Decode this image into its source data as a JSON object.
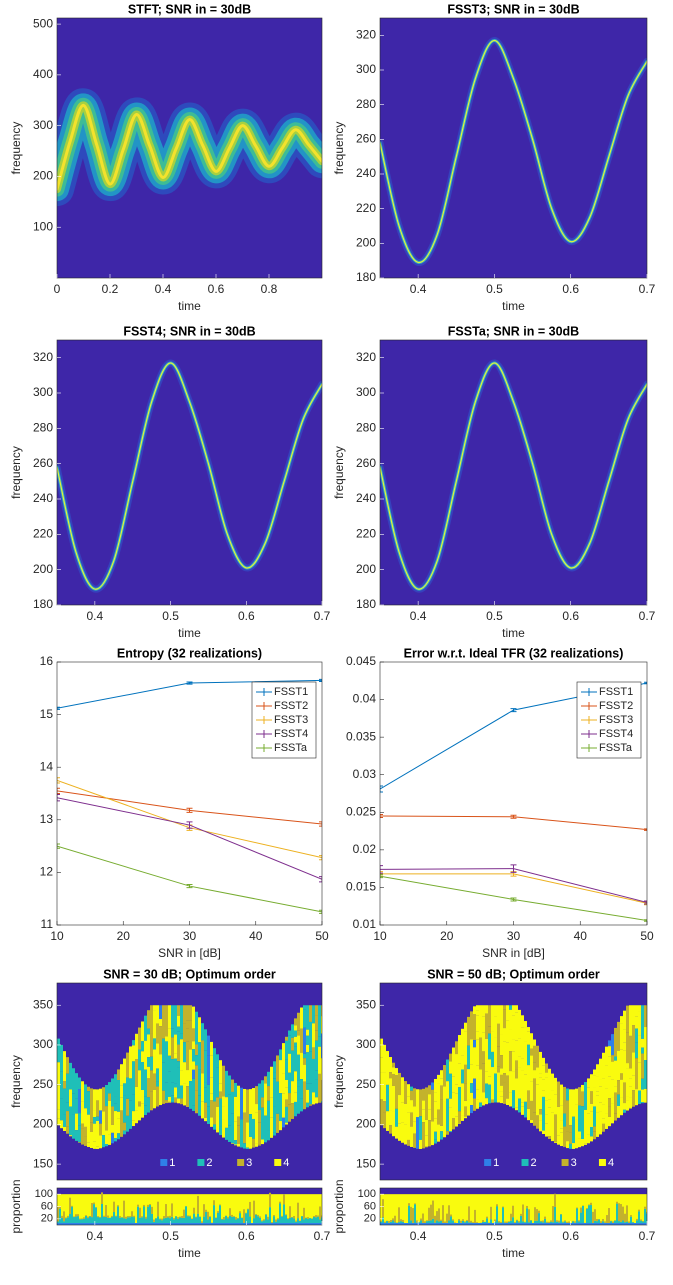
{
  "chart_data": [
    {
      "type": "heatmap",
      "title": "STFT; SNR in = 30dB",
      "xlabel": "time",
      "ylabel": "frequency",
      "xlim": [
        0,
        1
      ],
      "xticks": [
        0,
        0.2,
        0.4,
        0.6,
        0.8
      ],
      "ylim": [
        0,
        512
      ],
      "yticks": [
        100,
        200,
        300,
        400,
        500
      ],
      "style": "wide",
      "x": [
        0,
        0.05,
        0.1,
        0.15,
        0.2,
        0.25,
        0.3,
        0.35,
        0.4,
        0.45,
        0.5,
        0.55,
        0.6,
        0.65,
        0.7,
        0.75,
        0.8,
        0.85,
        0.9,
        0.95,
        1
      ],
      "values": [
        175,
        270,
        340,
        262,
        185,
        253,
        322,
        260,
        198,
        255,
        312,
        261,
        210,
        255,
        300,
        260,
        220,
        256,
        292,
        262,
        230
      ]
    },
    {
      "type": "heatmap",
      "title": "FSST3; SNR in = 30dB",
      "xlabel": "time",
      "ylabel": "frequency",
      "xlim": [
        0.35,
        0.7
      ],
      "xticks": [
        0.4,
        0.5,
        0.6,
        0.7
      ],
      "ylim": [
        180,
        330
      ],
      "yticks": [
        180,
        200,
        220,
        240,
        260,
        280,
        300,
        320
      ],
      "style": "thin",
      "x": [
        0.35,
        0.375,
        0.4,
        0.425,
        0.45,
        0.475,
        0.5,
        0.525,
        0.55,
        0.575,
        0.6,
        0.625,
        0.65,
        0.675,
        0.7
      ],
      "values": [
        258,
        210,
        189,
        205,
        250,
        295,
        317,
        295,
        260,
        220,
        201,
        215,
        250,
        285,
        305
      ]
    },
    {
      "type": "heatmap",
      "title": "FSST4; SNR in = 30dB",
      "xlabel": "time",
      "ylabel": "frequency",
      "xlim": [
        0.35,
        0.7
      ],
      "xticks": [
        0.4,
        0.5,
        0.6,
        0.7
      ],
      "ylim": [
        180,
        330
      ],
      "yticks": [
        180,
        200,
        220,
        240,
        260,
        280,
        300,
        320
      ],
      "style": "thin",
      "x": [
        0.35,
        0.375,
        0.4,
        0.425,
        0.45,
        0.475,
        0.5,
        0.525,
        0.55,
        0.575,
        0.6,
        0.625,
        0.65,
        0.675,
        0.7
      ],
      "values": [
        258,
        210,
        189,
        205,
        250,
        295,
        317,
        295,
        260,
        220,
        201,
        215,
        250,
        285,
        305
      ]
    },
    {
      "type": "heatmap",
      "title": "FSSTa; SNR in = 30dB",
      "xlabel": "time",
      "ylabel": "frequency",
      "xlim": [
        0.35,
        0.7
      ],
      "xticks": [
        0.4,
        0.5,
        0.6,
        0.7
      ],
      "ylim": [
        180,
        330
      ],
      "yticks": [
        180,
        200,
        220,
        240,
        260,
        280,
        300,
        320
      ],
      "style": "thin",
      "x": [
        0.35,
        0.375,
        0.4,
        0.425,
        0.45,
        0.475,
        0.5,
        0.525,
        0.55,
        0.575,
        0.6,
        0.625,
        0.65,
        0.675,
        0.7
      ],
      "values": [
        258,
        210,
        189,
        205,
        250,
        295,
        317,
        295,
        260,
        220,
        201,
        215,
        250,
        285,
        305
      ]
    },
    {
      "type": "line",
      "title": "Entropy (32 realizations)",
      "xlabel": "SNR in [dB]",
      "x": [
        10,
        30,
        50
      ],
      "xlim": [
        10,
        50
      ],
      "xticks": [
        10,
        20,
        30,
        40,
        50
      ],
      "ylim": [
        11,
        16
      ],
      "yticks": [
        11,
        12,
        13,
        14,
        15,
        16
      ],
      "legend": "upper right",
      "series": [
        {
          "name": "FSST1",
          "color": "#0072bd",
          "values": [
            15.12,
            15.6,
            15.65
          ],
          "errors": [
            0.02,
            0.02,
            0.02
          ]
        },
        {
          "name": "FSST2",
          "color": "#d95319",
          "values": [
            13.55,
            13.18,
            12.92
          ],
          "errors": [
            0.05,
            0.04,
            0.04
          ]
        },
        {
          "name": "FSST3",
          "color": "#edb120",
          "values": [
            13.75,
            12.85,
            12.28
          ],
          "errors": [
            0.05,
            0.05,
            0.04
          ]
        },
        {
          "name": "FSST4",
          "color": "#7e2f8e",
          "values": [
            13.42,
            12.9,
            11.87
          ],
          "errors": [
            0.06,
            0.06,
            0.05
          ]
        },
        {
          "name": "FSSTa",
          "color": "#77ac30",
          "values": [
            12.5,
            11.74,
            11.25
          ],
          "errors": [
            0.04,
            0.03,
            0.03
          ]
        }
      ]
    },
    {
      "type": "line",
      "title": "Error w.r.t. Ideal TFR (32 realizations)",
      "xlabel": "SNR in [dB]",
      "x": [
        10,
        30,
        50
      ],
      "xlim": [
        10,
        50
      ],
      "xticks": [
        10,
        20,
        30,
        40,
        50
      ],
      "ylim": [
        0.01,
        0.045
      ],
      "yticks": [
        0.01,
        0.015,
        0.02,
        0.025,
        0.03,
        0.035,
        0.04,
        0.045
      ],
      "legend": "upper right",
      "series": [
        {
          "name": "FSST1",
          "color": "#0072bd",
          "values": [
            0.0281,
            0.0386,
            0.0422
          ],
          "errors": [
            0.0004,
            0.0002,
            0.0001
          ]
        },
        {
          "name": "FSST2",
          "color": "#d95319",
          "values": [
            0.0245,
            0.0244,
            0.0227
          ],
          "errors": [
            0.0002,
            0.0002,
            0.0001
          ]
        },
        {
          "name": "FSST3",
          "color": "#edb120",
          "values": [
            0.0168,
            0.0168,
            0.0129
          ],
          "errors": [
            0.0003,
            0.0003,
            0.0002
          ]
        },
        {
          "name": "FSST4",
          "color": "#7e2f8e",
          "values": [
            0.0174,
            0.0175,
            0.013
          ],
          "errors": [
            0.0005,
            0.0005,
            0.0002
          ]
        },
        {
          "name": "FSSTa",
          "color": "#77ac30",
          "values": [
            0.0165,
            0.0134,
            0.0106
          ],
          "errors": [
            0.0002,
            0.0002,
            0.0001
          ]
        }
      ]
    },
    {
      "type": "order-map",
      "title": "SNR = 30 dB; Optimum order",
      "ylabel": "frequency",
      "xlim": [
        0.35,
        0.7
      ],
      "ylim": [
        130,
        378
      ],
      "yticks": [
        150,
        200,
        250,
        300,
        350
      ],
      "categories": [
        "1",
        "2",
        "3",
        "4"
      ],
      "colors": [
        "#2f7fe8",
        "#1fbfb8",
        "#c3b22c",
        "#f9fb0e"
      ],
      "mix": [
        0.02,
        0.4,
        0.25,
        0.33
      ]
    },
    {
      "type": "proportion",
      "ylabel": "proportion",
      "xlabel": "time",
      "xlim": [
        0.35,
        0.7
      ],
      "xticks": [
        0.4,
        0.5,
        0.6,
        0.7
      ],
      "ylim": [
        0,
        120
      ],
      "yticks": [
        20,
        60,
        100
      ],
      "colors": [
        "#2f7fe8",
        "#1fbfb8",
        "#c3b22c",
        "#f9fb0e"
      ]
    },
    {
      "type": "order-map",
      "title": "SNR = 50 dB; Optimum order",
      "ylabel": "frequency",
      "xlim": [
        0.35,
        0.7
      ],
      "ylim": [
        130,
        378
      ],
      "yticks": [
        150,
        200,
        250,
        300,
        350
      ],
      "categories": [
        "1",
        "2",
        "3",
        "4"
      ],
      "colors": [
        "#2f7fe8",
        "#1fbfb8",
        "#c3b22c",
        "#f9fb0e"
      ],
      "mix": [
        0.01,
        0.1,
        0.25,
        0.64
      ]
    },
    {
      "type": "proportion",
      "ylabel": "proportion",
      "xlabel": "time",
      "xlim": [
        0.35,
        0.7
      ],
      "xticks": [
        0.4,
        0.5,
        0.6,
        0.7
      ],
      "ylim": [
        0,
        120
      ],
      "yticks": [
        20,
        60,
        100
      ],
      "colors": [
        "#2f7fe8",
        "#1fbfb8",
        "#c3b22c",
        "#f9fb0e"
      ]
    }
  ]
}
